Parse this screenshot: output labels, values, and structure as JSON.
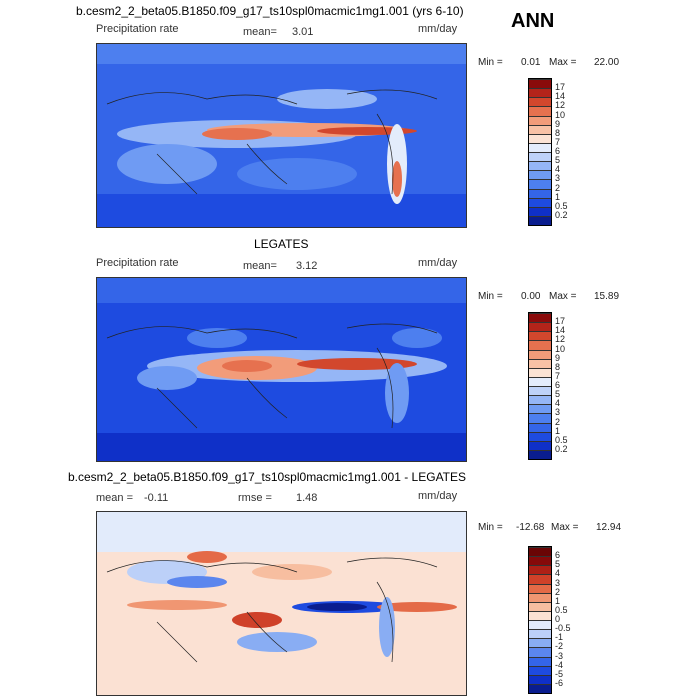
{
  "annotation": "ANN",
  "panels": [
    {
      "title": "b.cesm2_2_beta05.B1850.f09_g17_ts10spl0macmic1mg1.001 (yrs 6-10)",
      "left_label": "Precipitation rate",
      "stat_label": "mean=",
      "stat_value": "3.01",
      "units": "mm/day",
      "min_label": "Min =",
      "min_value": "0.01",
      "max_label": "Max =",
      "max_value": "22.00",
      "colorbar": {
        "levels": [
          "0.2",
          "0.5",
          "1",
          "2",
          "3",
          "4",
          "5",
          "6",
          "7",
          "8",
          "9",
          "10",
          "12",
          "14",
          "17"
        ],
        "colors": [
          "#0a1d8f",
          "#0f30c8",
          "#1e4be0",
          "#3465e8",
          "#4d7fef",
          "#6f9bf3",
          "#95b6f6",
          "#bed2f8",
          "#e3ecfb",
          "#fbe3d4",
          "#f8c2a6",
          "#f29c7a",
          "#e6714f",
          "#d2472d",
          "#b3241a",
          "#8a0b0b"
        ]
      }
    },
    {
      "title": "LEGATES",
      "left_label": "Precipitation rate",
      "stat_label": "mean=",
      "stat_value": "3.12",
      "units": "mm/day",
      "min_label": "Min =",
      "min_value": "0.00",
      "max_label": "Max =",
      "max_value": "15.89",
      "colorbar": {
        "levels": [
          "0.2",
          "0.5",
          "1",
          "2",
          "3",
          "4",
          "5",
          "6",
          "7",
          "8",
          "9",
          "10",
          "12",
          "14",
          "17"
        ],
        "colors": [
          "#0a1d8f",
          "#0f30c8",
          "#1e4be0",
          "#3465e8",
          "#4d7fef",
          "#6f9bf3",
          "#95b6f6",
          "#bed2f8",
          "#e3ecfb",
          "#fbe3d4",
          "#f8c2a6",
          "#f29c7a",
          "#e6714f",
          "#d2472d",
          "#b3241a",
          "#8a0b0b"
        ]
      }
    },
    {
      "title": "b.cesm2_2_beta05.B1850.f09_g17_ts10spl0macmic1mg1.001 - LEGATES",
      "left_label": "mean =",
      "left_value": "-0.11",
      "stat_label": "rmse =",
      "stat_value": "1.48",
      "units": "mm/day",
      "min_label": "Min =",
      "min_value": "-12.68",
      "max_label": "Max =",
      "max_value": "12.94",
      "colorbar": {
        "levels": [
          "-6",
          "-5",
          "-4",
          "-3",
          "-2",
          "-1",
          "-0.5",
          "0",
          "0.5",
          "1",
          "2",
          "3",
          "4",
          "5",
          "6"
        ],
        "colors": [
          "#0a1d8f",
          "#0f30c8",
          "#1e4be0",
          "#3465e8",
          "#5b86ee",
          "#89adf3",
          "#bcd0f8",
          "#e2ebfb",
          "#fbe1d3",
          "#f7bea0",
          "#f09672",
          "#e46a47",
          "#cf4129",
          "#ad2016",
          "#860a0a",
          "#6a0505"
        ]
      }
    }
  ],
  "chart_data": [
    {
      "type": "heatmap",
      "title": "b.cesm2_2_beta05.B1850.f09_g17_ts10spl0macmic1mg1.001 (yrs 6-10)",
      "variable": "Precipitation rate",
      "units": "mm/day",
      "mean": 3.01,
      "min": 0.01,
      "max": 22.0,
      "contour_levels": [
        0.2,
        0.5,
        1,
        2,
        3,
        4,
        5,
        6,
        7,
        8,
        9,
        10,
        12,
        14,
        17
      ]
    },
    {
      "type": "heatmap",
      "title": "LEGATES",
      "variable": "Precipitation rate",
      "units": "mm/day",
      "mean": 3.12,
      "min": 0.0,
      "max": 15.89,
      "contour_levels": [
        0.2,
        0.5,
        1,
        2,
        3,
        4,
        5,
        6,
        7,
        8,
        9,
        10,
        12,
        14,
        17
      ]
    },
    {
      "type": "heatmap",
      "title": "b.cesm2_2_beta05.B1850.f09_g17_ts10spl0macmic1mg1.001 - LEGATES",
      "units": "mm/day",
      "mean": -0.11,
      "rmse": 1.48,
      "min": -12.68,
      "max": 12.94,
      "contour_levels": [
        -6,
        -5,
        -4,
        -3,
        -2,
        -1,
        -0.5,
        0,
        0.5,
        1,
        2,
        3,
        4,
        5,
        6
      ]
    }
  ]
}
